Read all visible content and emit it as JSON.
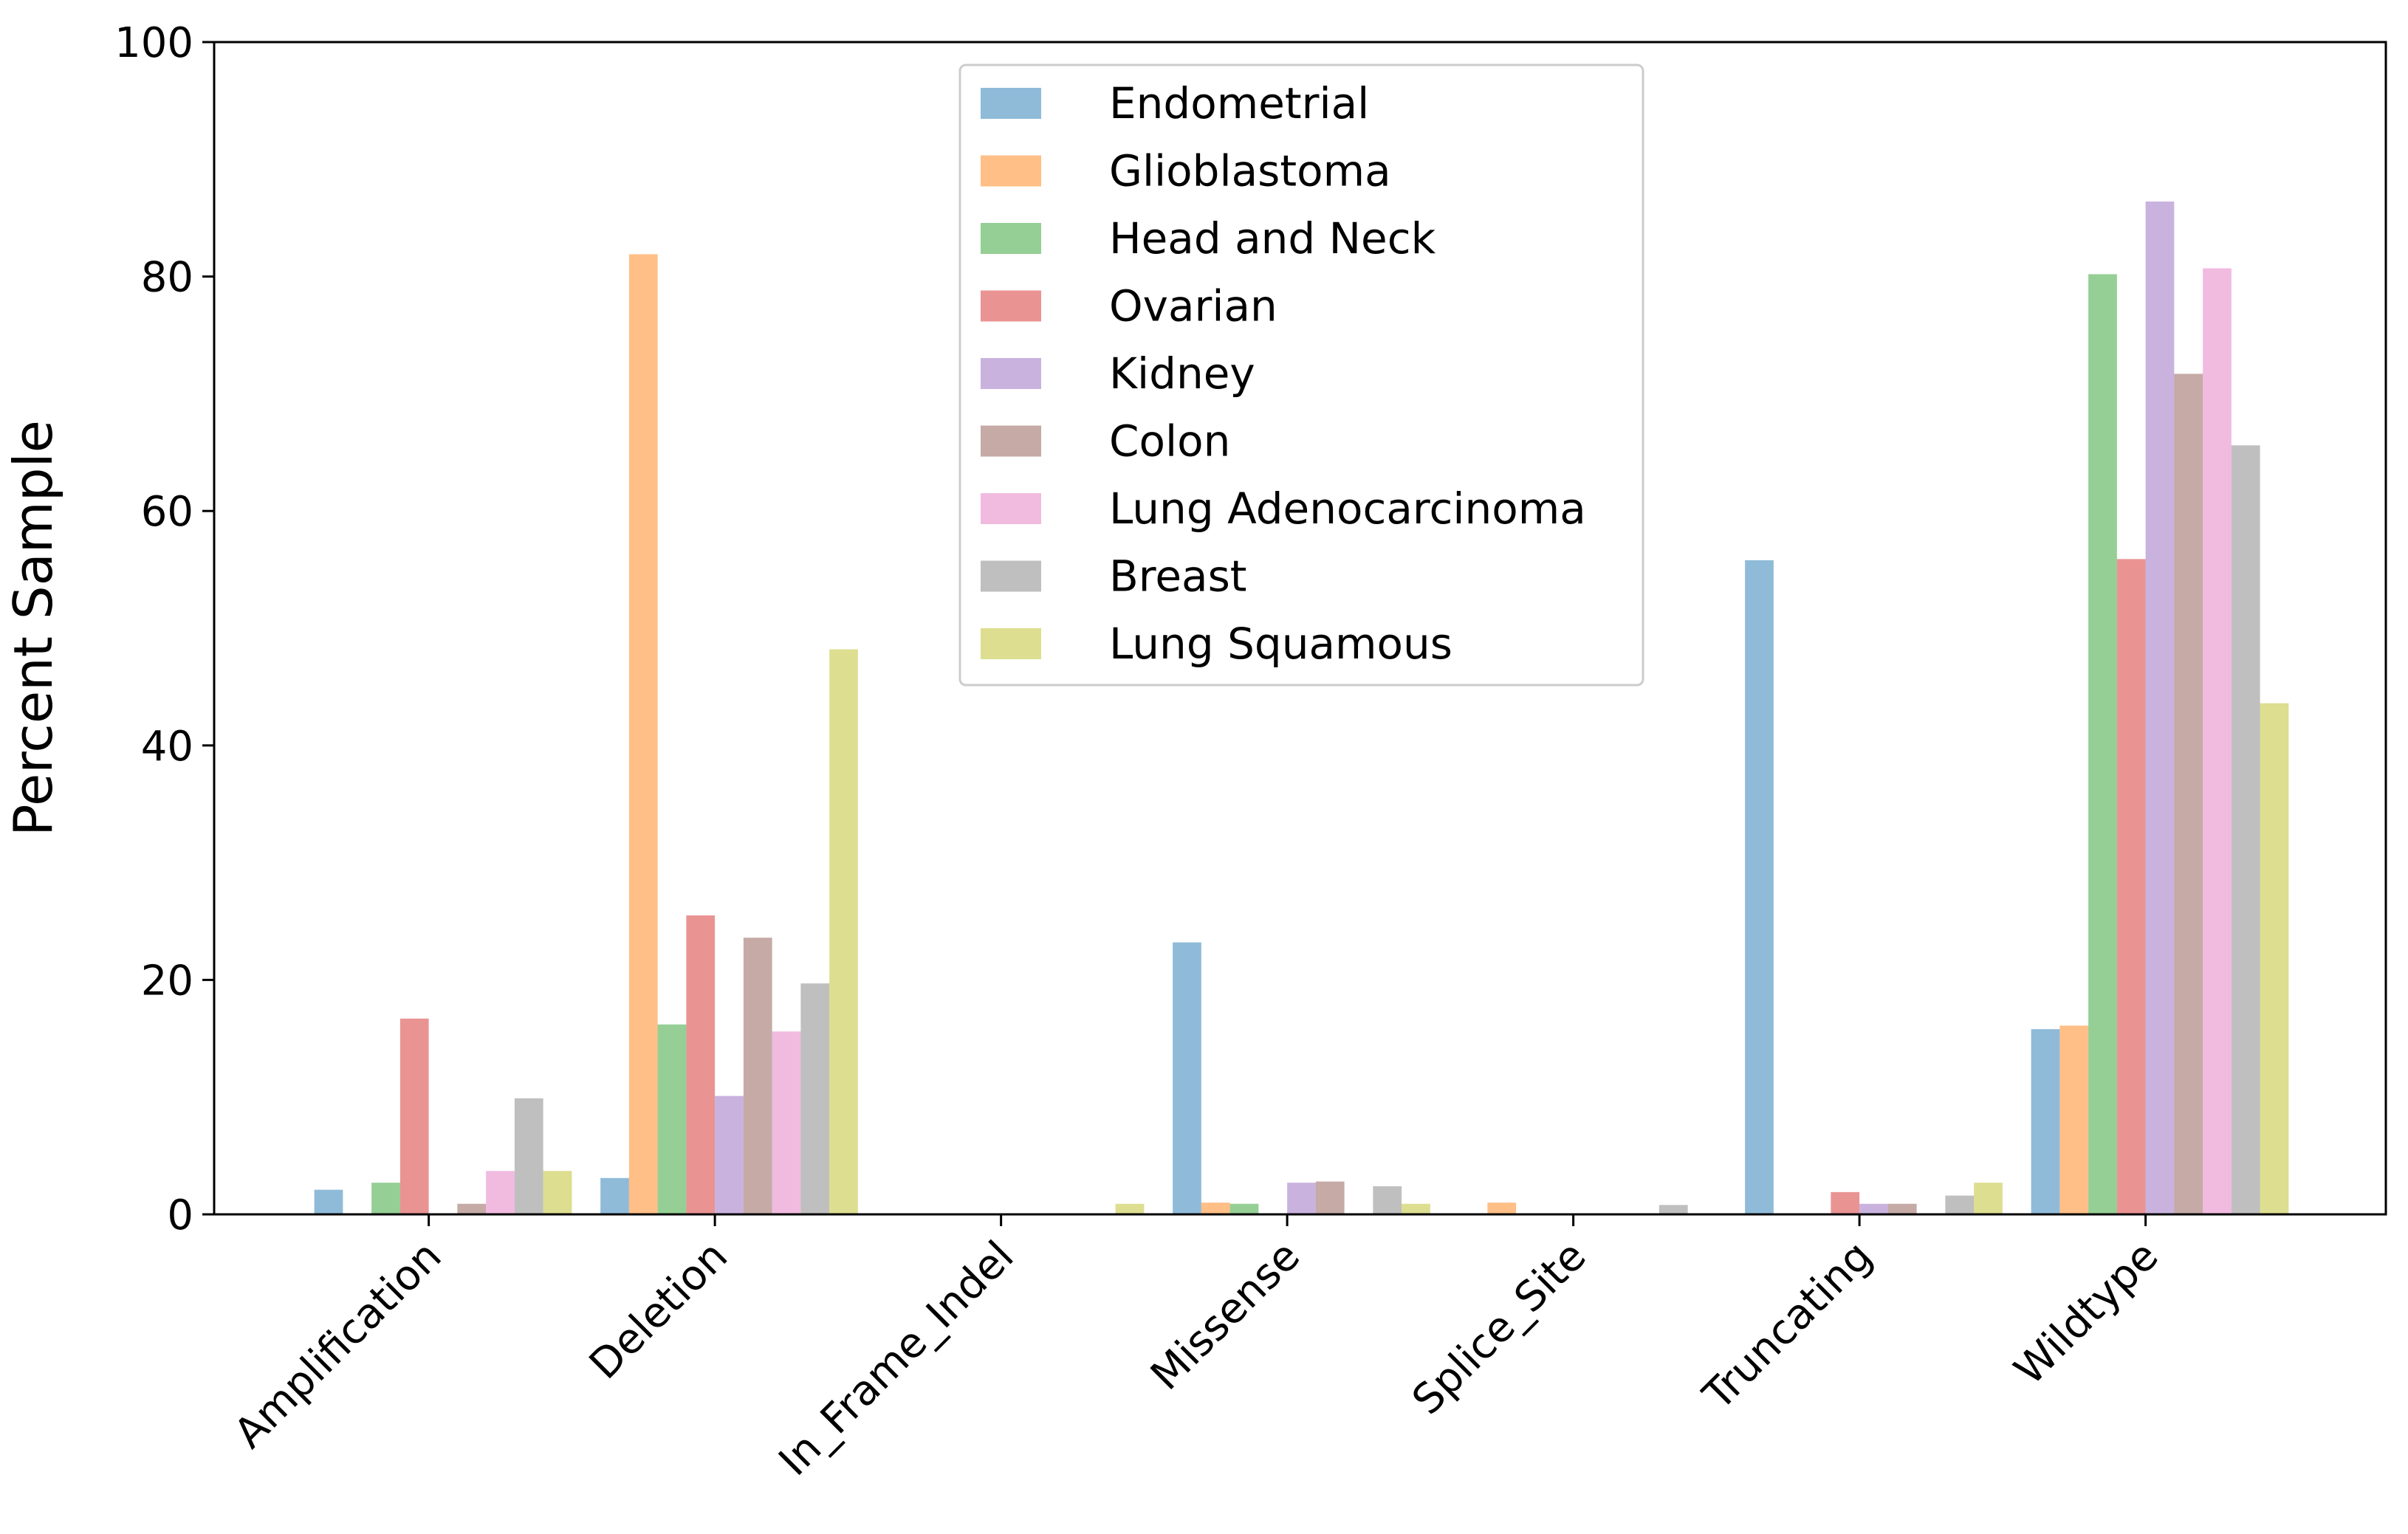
{
  "chart_data": {
    "type": "bar",
    "title": "",
    "xlabel": "",
    "ylabel": "Percent Sample",
    "ylim": [
      0,
      100
    ],
    "yticks": [
      0,
      20,
      40,
      60,
      80,
      100
    ],
    "grid": false,
    "legend_position": "top-center",
    "categories": [
      "Amplification",
      "Deletion",
      "In_Frame_Indel",
      "Missense",
      "Splice_Site",
      "Truncating",
      "Wildtype"
    ],
    "series": [
      {
        "name": "Endometrial",
        "color": "#1f77b4",
        "values": [
          2.1,
          3.1,
          0,
          23.2,
          0,
          55.8,
          15.8
        ]
      },
      {
        "name": "Glioblastoma",
        "color": "#ff7f0e",
        "values": [
          0,
          81.9,
          0,
          1.0,
          1.0,
          0,
          16.1
        ]
      },
      {
        "name": "Head and Neck",
        "color": "#2ca02c",
        "values": [
          2.7,
          16.2,
          0,
          0.9,
          0,
          0,
          80.2
        ]
      },
      {
        "name": "Ovarian",
        "color": "#d62728",
        "values": [
          16.7,
          25.5,
          0,
          0,
          0,
          1.9,
          55.9
        ]
      },
      {
        "name": "Kidney",
        "color": "#9467bd",
        "values": [
          0,
          10.1,
          0,
          2.7,
          0,
          0.9,
          86.4
        ]
      },
      {
        "name": "Colon",
        "color": "#8c564b",
        "values": [
          0.9,
          23.6,
          0,
          2.8,
          0,
          0.9,
          71.7
        ]
      },
      {
        "name": "Lung Adenocarcinoma",
        "color": "#e377c2",
        "values": [
          3.7,
          15.6,
          0,
          0,
          0,
          0,
          80.7
        ]
      },
      {
        "name": "Breast",
        "color": "#7f7f7f",
        "values": [
          9.9,
          19.7,
          0,
          2.4,
          0.8,
          1.6,
          65.6
        ]
      },
      {
        "name": "Lung Squamous",
        "color": "#bcbd22",
        "values": [
          3.7,
          48.2,
          0.9,
          0.9,
          0,
          2.7,
          43.6
        ]
      }
    ]
  }
}
